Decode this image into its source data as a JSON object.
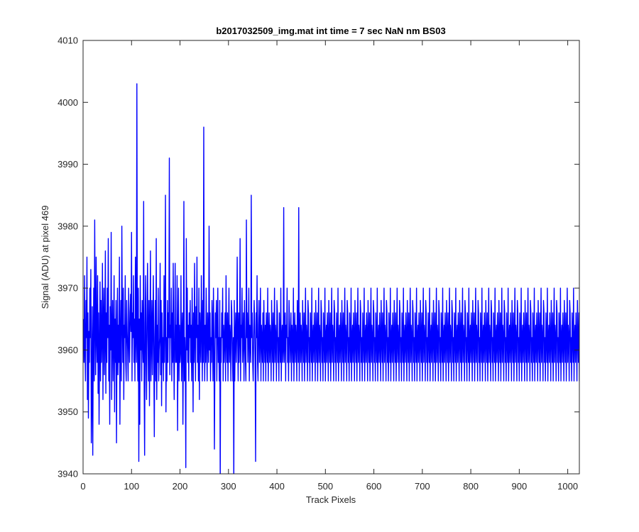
{
  "chart_data": {
    "type": "line",
    "title": "b2017032509_img.mat int time = 7 sec  NaN nm BS03",
    "xlabel": "Track Pixels",
    "ylabel": "Signal (ADU) at pixel 469",
    "xlim": [
      0,
      1024
    ],
    "ylim": [
      3940,
      4010
    ],
    "xticks": [
      0,
      100,
      200,
      300,
      400,
      500,
      600,
      700,
      800,
      900,
      1000
    ],
    "yticks": [
      3940,
      3950,
      3960,
      3970,
      3980,
      3990,
      4000,
      4010
    ],
    "grid": false,
    "series": [
      {
        "color": "#0000ff",
        "x_start": 1,
        "x_step": 1,
        "values": [
          3965,
          3958,
          3972,
          3960,
          3955,
          3968,
          3962,
          3975,
          3952,
          3966,
          3949,
          3963,
          3958,
          3970,
          3962,
          3973,
          3945,
          3952,
          3967,
          3943,
          3960,
          3970,
          3955,
          3981,
          3964,
          3956,
          3975,
          3962,
          3958,
          3972,
          3953,
          3966,
          3948,
          3960,
          3971,
          3955,
          3968,
          3958,
          3962,
          3974,
          3952,
          3965,
          3970,
          3956,
          3962,
          3976,
          3953,
          3966,
          3958,
          3970,
          3962,
          3978,
          3955,
          3964,
          3948,
          3967,
          3960,
          3979,
          3952,
          3963,
          3968,
          3955,
          3962,
          3972,
          3950,
          3965,
          3958,
          3968,
          3945,
          3962,
          3970,
          3956,
          3964,
          3958,
          3975,
          3948,
          3962,
          3968,
          3955,
          3980,
          3965,
          3958,
          3970,
          3952,
          3964,
          3962,
          3972,
          3958,
          3955,
          3968,
          3963,
          3960,
          3955,
          3970,
          3962,
          3958,
          3966,
          3969,
          3963,
          3979,
          3955,
          3966,
          3962,
          3972,
          3958,
          3965,
          3955,
          3975,
          3962,
          3958,
          4003,
          3962,
          3955,
          3970,
          3942,
          3965,
          3948,
          3972,
          3960,
          3966,
          3955,
          3968,
          3962,
          3958,
          3984,
          3955,
          3943,
          3964,
          3972,
          3958,
          3952,
          3966,
          3974,
          3962,
          3955,
          3968,
          3951,
          3963,
          3976,
          3955,
          3962,
          3968,
          3956,
          3964,
          3972,
          3958,
          3946,
          3962,
          3968,
          3955,
          3978,
          3952,
          3964,
          3958,
          3970,
          3955,
          3960,
          3962,
          3974,
          3956,
          3968,
          3951,
          3966,
          3958,
          3962,
          3955,
          3972,
          3958,
          3964,
          3985,
          3950,
          3962,
          3955,
          3968,
          3958,
          3966,
          3962,
          3991,
          3956,
          3964,
          3962,
          3970,
          3955,
          3966,
          3958,
          3974,
          3960,
          3952,
          3962,
          3974,
          3958,
          3964,
          3958,
          3972,
          3947,
          3962,
          3970,
          3955,
          3964,
          3958,
          3960,
          3972,
          3955,
          3962,
          3966,
          3948,
          3960,
          3984,
          3955,
          3962,
          3958,
          3941,
          3978,
          3960,
          3970,
          3958,
          3964,
          3955,
          3966,
          3962,
          3968,
          3958,
          3964,
          3955,
          3970,
          3962,
          3950,
          3966,
          3958,
          3974,
          3962,
          3955,
          3967,
          3962,
          3975,
          3958,
          3964,
          3955,
          3970,
          3952,
          3966,
          3962,
          3958,
          3972,
          3964,
          3955,
          3968,
          3958,
          3996,
          3962,
          3955,
          3964,
          3958,
          3970,
          3962,
          3955,
          3966,
          3962,
          3958,
          3980,
          3960,
          3966,
          3955,
          3962,
          3958,
          3968,
          3964,
          3955,
          3970,
          3962,
          3944,
          3958,
          3966,
          3962,
          3968,
          3955,
          3964,
          3970,
          3958,
          3962,
          3955,
          3968,
          3938,
          3962,
          3958,
          3966,
          3962,
          3970,
          3955,
          3964,
          3958,
          3962,
          3966,
          3955,
          3972,
          3962,
          3958,
          3966,
          3955,
          3962,
          3970,
          3958,
          3964,
          3962,
          3955,
          3968,
          3966,
          3960,
          3955,
          3962,
          3938,
          3968,
          3955,
          3962,
          3966,
          3958,
          3962,
          3975,
          3962,
          3955,
          3966,
          3958,
          3962,
          3978,
          3955,
          3964,
          3962,
          3970,
          3958,
          3962,
          3966,
          3955,
          3968,
          3962,
          3958,
          3955,
          3981,
          3962,
          3966,
          3958,
          3962,
          3970,
          3955,
          3964,
          3962,
          3958,
          3985,
          3962,
          3966,
          3958,
          3955,
          3962,
          3968,
          3964,
          3958,
          3942,
          3966,
          3962,
          3972,
          3958,
          3955,
          3964,
          3968,
          3958,
          3962,
          3970,
          3955,
          3964,
          3962,
          3958,
          3966,
          3955,
          3968,
          3962,
          3958,
          3964,
          3955,
          3966,
          3962,
          3958,
          3970,
          3955,
          3962,
          3966,
          3958,
          3964,
          3962,
          3955,
          3968,
          3962,
          3958,
          3966,
          3955,
          3962,
          3970,
          3958,
          3964,
          3962,
          3955,
          3968,
          3966,
          3958,
          3962,
          3955,
          3966,
          3962,
          3958,
          3970,
          3955,
          3962,
          3964,
          3958,
          3960,
          3983,
          3958,
          3962,
          3966,
          3955,
          3964,
          3962,
          3970,
          3958,
          3962,
          3955,
          3968,
          3964,
          3958,
          3962,
          3966,
          3955,
          3964,
          3962,
          3958,
          3970,
          3955,
          3962,
          3966,
          3958,
          3964,
          3962,
          3955,
          3968,
          3962,
          3958,
          3983,
          3955,
          3962,
          3966,
          3958,
          3964,
          3962,
          3955,
          3968,
          3962,
          3958,
          3966,
          3955,
          3962,
          3970,
          3958,
          3964,
          3962,
          3955,
          3968,
          3966,
          3958,
          3962,
          3955,
          3966,
          3962,
          3958,
          3970,
          3955,
          3962,
          3964,
          3958,
          3966,
          3962,
          3955,
          3968,
          3962,
          3958,
          3966,
          3955,
          3962,
          3970,
          3958,
          3964,
          3962,
          3955,
          3968,
          3966,
          3958,
          3962,
          3955,
          3966,
          3962,
          3958,
          3970,
          3955,
          3962,
          3964,
          3958,
          3966,
          3962,
          3955,
          3968,
          3962,
          3958,
          3966,
          3955,
          3962,
          3970,
          3958,
          3964,
          3962,
          3955,
          3968,
          3966,
          3958,
          3962,
          3955,
          3966,
          3962,
          3958,
          3970,
          3955,
          3962,
          3964,
          3958,
          3966,
          3962,
          3955,
          3968,
          3962,
          3958,
          3966,
          3955,
          3962,
          3970,
          3958,
          3964,
          3962,
          3955,
          3968,
          3966,
          3958,
          3962,
          3955,
          3966,
          3962,
          3958,
          3970,
          3955,
          3962,
          3964,
          3958,
          3966,
          3962,
          3955,
          3968,
          3962,
          3958,
          3966,
          3955,
          3962,
          3970,
          3958,
          3964,
          3962,
          3955,
          3968,
          3966,
          3958,
          3962,
          3955,
          3966,
          3962,
          3958,
          3970,
          3955,
          3962,
          3964,
          3958,
          3966,
          3962,
          3955,
          3968,
          3962,
          3958,
          3966,
          3955,
          3962,
          3970,
          3958,
          3964,
          3962,
          3955,
          3968,
          3966,
          3958,
          3962,
          3955,
          3966,
          3962,
          3958,
          3970,
          3955,
          3962,
          3964,
          3958,
          3966,
          3962,
          3955,
          3968,
          3962,
          3958,
          3966,
          3955,
          3962,
          3970,
          3958,
          3964,
          3962,
          3955,
          3968,
          3966,
          3958,
          3962,
          3955,
          3966,
          3962,
          3958,
          3970,
          3955,
          3962,
          3964,
          3958,
          3966,
          3962,
          3955,
          3968,
          3962,
          3958,
          3966,
          3955,
          3962,
          3970,
          3958,
          3964,
          3962,
          3955,
          3968,
          3966,
          3958,
          3962,
          3955,
          3966,
          3962,
          3958,
          3970,
          3955,
          3962,
          3964,
          3958,
          3966,
          3962,
          3955,
          3968,
          3962,
          3958,
          3966,
          3955,
          3962,
          3970,
          3958,
          3964,
          3962,
          3955,
          3968,
          3966,
          3958,
          3962,
          3955,
          3966,
          3962,
          3958,
          3970,
          3955,
          3962,
          3964,
          3958,
          3966,
          3962,
          3955,
          3968,
          3962,
          3958,
          3966,
          3955,
          3962,
          3970,
          3958,
          3964,
          3962,
          3955,
          3968,
          3966,
          3958,
          3962,
          3955,
          3966,
          3962,
          3958,
          3970,
          3955,
          3962,
          3964,
          3958,
          3966,
          3962,
          3955,
          3968,
          3962,
          3958,
          3966,
          3955,
          3962,
          3970,
          3958,
          3964,
          3962,
          3955,
          3968,
          3966,
          3958,
          3962,
          3955,
          3966,
          3962,
          3958,
          3970,
          3955,
          3962,
          3964,
          3958,
          3966,
          3962,
          3955,
          3968,
          3962,
          3958,
          3966,
          3955,
          3962,
          3970,
          3958,
          3964,
          3962,
          3955,
          3968,
          3966,
          3958,
          3962,
          3955,
          3966,
          3962,
          3958,
          3970,
          3955,
          3962,
          3964,
          3958,
          3966,
          3962,
          3955,
          3968,
          3962,
          3958,
          3966,
          3955,
          3962,
          3970,
          3958,
          3964,
          3962,
          3955,
          3968,
          3966,
          3958,
          3962,
          3955,
          3966,
          3962,
          3958,
          3970,
          3955,
          3962,
          3964,
          3958,
          3966,
          3962,
          3955,
          3968,
          3962,
          3958,
          3966,
          3955,
          3962,
          3970,
          3958,
          3964,
          3962,
          3955,
          3968,
          3966,
          3958,
          3962,
          3955,
          3966,
          3962,
          3958,
          3970,
          3955,
          3962,
          3964,
          3958,
          3966,
          3962,
          3955,
          3968,
          3962,
          3958,
          3966,
          3955,
          3962,
          3970,
          3958,
          3964,
          3962,
          3955,
          3968,
          3966,
          3958,
          3962,
          3955,
          3966,
          3962,
          3958,
          3970,
          3955,
          3962,
          3964,
          3958,
          3966,
          3962,
          3955,
          3968,
          3962,
          3958,
          3966,
          3955,
          3962,
          3970,
          3958,
          3964,
          3962,
          3955,
          3968,
          3966,
          3958,
          3962,
          3955,
          3966,
          3962,
          3958,
          3970,
          3955,
          3962,
          3964,
          3958,
          3966,
          3962,
          3955,
          3968,
          3962,
          3958,
          3966,
          3955,
          3962,
          3970,
          3958,
          3964,
          3962,
          3955,
          3968,
          3966,
          3958,
          3962,
          3955,
          3966,
          3962,
          3958,
          3970,
          3955,
          3962,
          3964,
          3958,
          3966,
          3962,
          3955,
          3968,
          3962,
          3958,
          3966,
          3955,
          3962,
          3970,
          3958,
          3964,
          3962,
          3955,
          3968,
          3966,
          3958,
          3962,
          3955,
          3966,
          3962,
          3958,
          3970,
          3955,
          3962,
          3964,
          3958,
          3966,
          3962,
          3955,
          3968,
          3962,
          3958,
          3966,
          3955,
          3962,
          3970,
          3958,
          3964,
          3962,
          3955,
          3968,
          3966,
          3958,
          3962,
          3955,
          3966,
          3962,
          3958,
          3970,
          3955,
          3962,
          3964,
          3958,
          3966,
          3962,
          3955,
          3968,
          3962,
          3958,
          3966,
          3955,
          3962,
          3970,
          3958,
          3964,
          3962,
          3955,
          3968,
          3966,
          3958,
          3962,
          3955,
          3966,
          3962,
          3958,
          3970,
          3955,
          3962,
          3964,
          3958,
          3966,
          3962,
          3955,
          3968,
          3962,
          3958,
          3966,
          3955,
          3962,
          3970,
          3958,
          3964,
          3962,
          3955,
          3968,
          3966,
          3958,
          3962,
          3955,
          3966,
          3962,
          3958,
          3970,
          3955,
          3962,
          3964,
          3958,
          3966,
          3962,
          3955,
          3968,
          3962,
          3958,
          3966,
          3955,
          3962,
          3970,
          3958,
          3964,
          3962,
          3955,
          3968,
          3966,
          3958,
          3962,
          3955,
          3966,
          3962,
          3958,
          3970,
          3955,
          3962,
          3964,
          3958,
          3966,
          3962,
          3955,
          3968,
          3962,
          3958,
          3966,
          3955,
          3962,
          3970,
          3958,
          3964,
          3962,
          3955,
          3968
        ]
      }
    ]
  }
}
